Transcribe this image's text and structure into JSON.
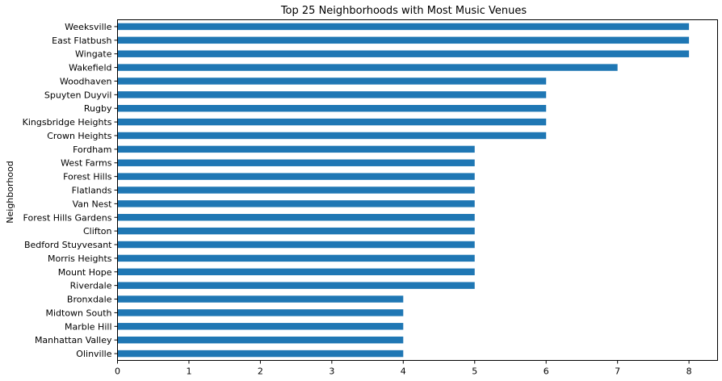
{
  "chart_data": {
    "type": "bar",
    "orientation": "horizontal",
    "title": "Top 25 Neighborhoods with Most Music Venues",
    "xlabel": "",
    "ylabel": "Neighborhood",
    "xlim": [
      0,
      8.4
    ],
    "xticks": [
      0,
      1,
      2,
      3,
      4,
      5,
      6,
      7,
      8
    ],
    "grid": false,
    "legend": "none",
    "bar_color": "#1f77b4",
    "categories": [
      "Weeksville",
      "East Flatbush",
      "Wingate",
      "Wakefield",
      "Woodhaven",
      "Spuyten Duyvil",
      "Rugby",
      "Kingsbridge Heights",
      "Crown Heights",
      "Fordham",
      "West Farms",
      "Forest Hills",
      "Flatlands",
      "Van Nest",
      "Forest Hills Gardens",
      "Clifton",
      "Bedford Stuyvesant",
      "Morris Heights",
      "Mount Hope",
      "Riverdale",
      "Bronxdale",
      "Midtown South",
      "Marble Hill",
      "Manhattan Valley",
      "Olinville"
    ],
    "values": [
      8,
      8,
      8,
      7,
      6,
      6,
      6,
      6,
      6,
      5,
      5,
      5,
      5,
      5,
      5,
      5,
      5,
      5,
      5,
      5,
      4,
      4,
      4,
      4,
      4
    ]
  }
}
